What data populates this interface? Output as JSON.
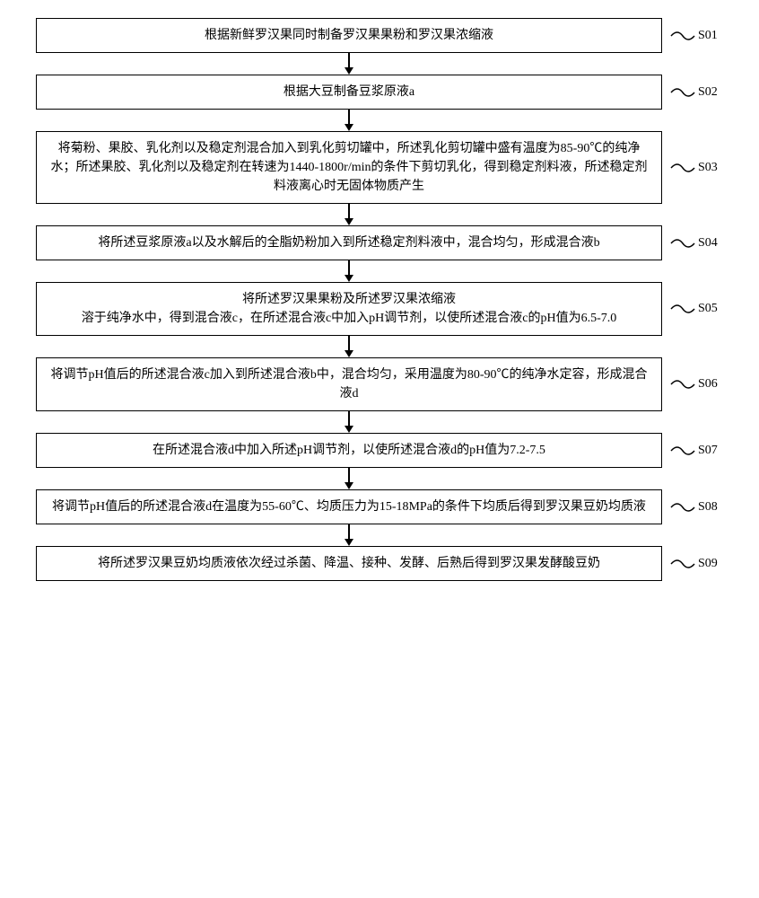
{
  "flowchart": {
    "type": "flowchart",
    "direction": "vertical",
    "box_border_color": "#000000",
    "box_border_width": 1.5,
    "box_background": "#ffffff",
    "text_color": "#000000",
    "font_size": 14,
    "arrow_color": "#000000",
    "arrow_height": 24,
    "steps": [
      {
        "id": "S01",
        "text": "根据新鲜罗汉果同时制备罗汉果果粉和罗汉果浓缩液"
      },
      {
        "id": "S02",
        "text": "根据大豆制备豆浆原液a"
      },
      {
        "id": "S03",
        "text": "将菊粉、果胶、乳化剂以及稳定剂混合加入到乳化剪切罐中，所述乳化剪切罐中盛有温度为85-90℃的纯净水；所述果胶、乳化剂以及稳定剂在转速为1440-1800r/min的条件下剪切乳化，得到稳定剂料液，所述稳定剂料液离心时无固体物质产生"
      },
      {
        "id": "S04",
        "text": "将所述豆浆原液a以及水解后的全脂奶粉加入到所述稳定剂料液中，混合均匀，形成混合液b"
      },
      {
        "id": "S05",
        "text": "将所述罗汉果果粉及所述罗汉果浓缩液\n溶于纯净水中，得到混合液c，在所述混合液c中加入pH调节剂，以使所述混合液c的pH值为6.5-7.0"
      },
      {
        "id": "S06",
        "text": "将调节pH值后的所述混合液c加入到所述混合液b中，混合均匀，采用温度为80-90℃的纯净水定容，形成混合液d"
      },
      {
        "id": "S07",
        "text": "在所述混合液d中加入所述pH调节剂，以使所述混合液d的pH值为7.2-7.5"
      },
      {
        "id": "S08",
        "text": "将调节pH值后的所述混合液d在温度为55-60℃、均质压力为15-18MPa的条件下均质后得到罗汉果豆奶均质液"
      },
      {
        "id": "S09",
        "text": "将所述罗汉果豆奶均质液依次经过杀菌、降温、接种、发酵、后熟后得到罗汉果发酵酸豆奶"
      }
    ]
  }
}
